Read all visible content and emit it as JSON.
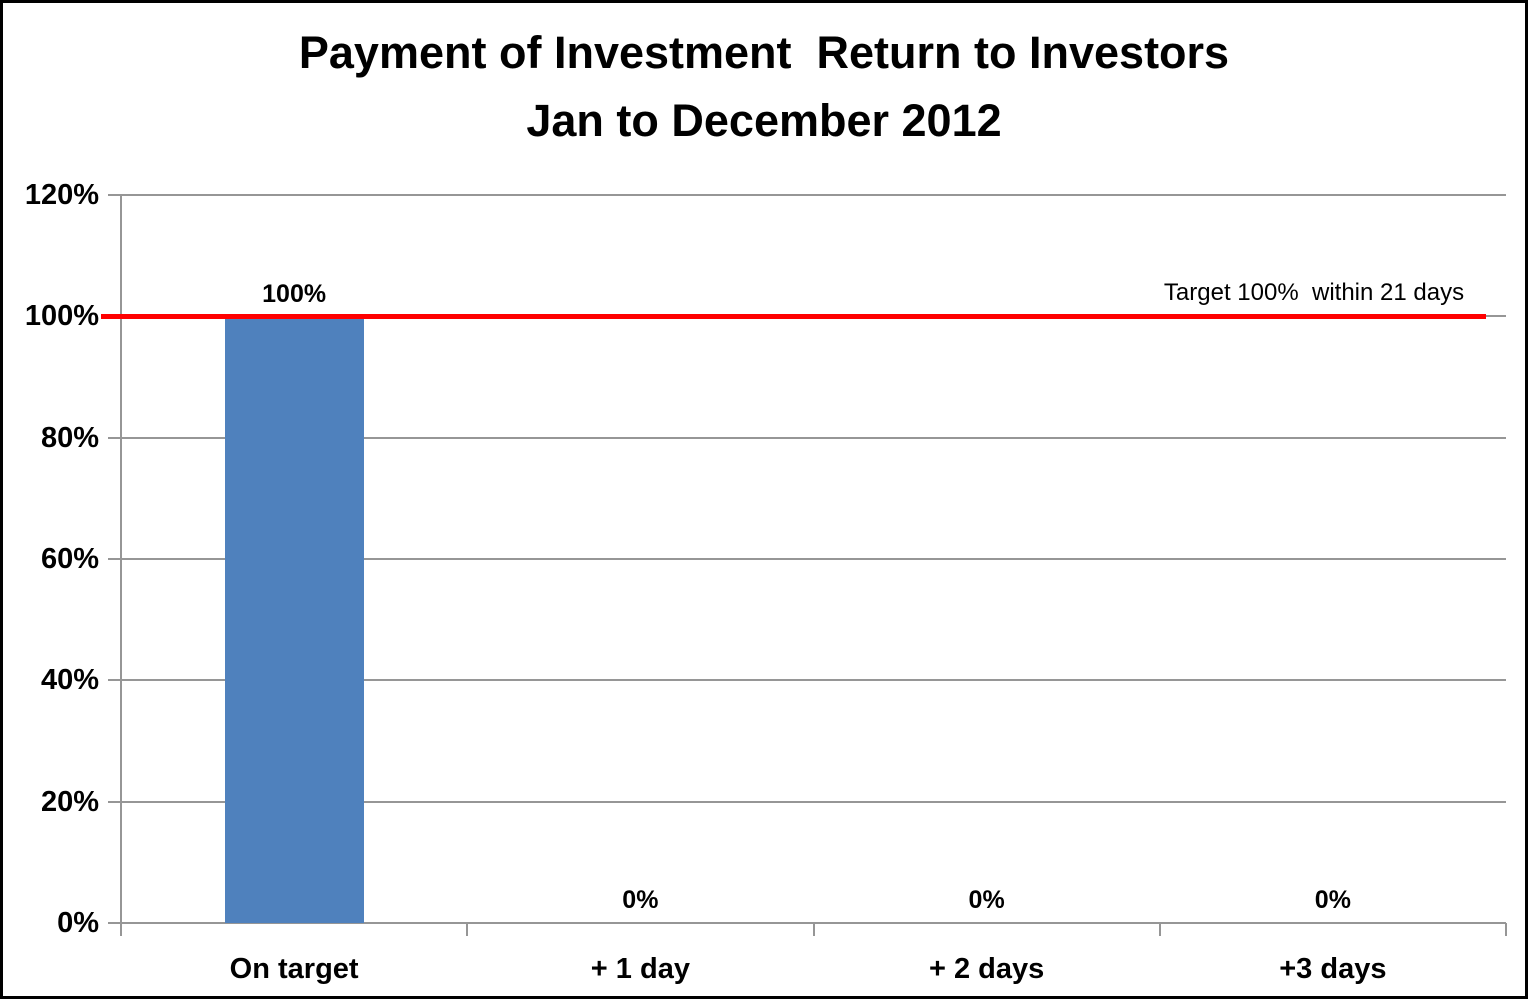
{
  "chart_data": {
    "type": "bar",
    "title": "Payment of Investment  Return to Investors",
    "subtitle": "Jan to December 2012",
    "categories": [
      "On target",
      "+ 1 day",
      "+ 2 days",
      "+3 days"
    ],
    "values": [
      100,
      0,
      0,
      0
    ],
    "data_labels": [
      "100%",
      "0%",
      "0%",
      "0%"
    ],
    "xlabel": "",
    "ylabel": "",
    "ylim": [
      0,
      120
    ],
    "ytick_step": 20,
    "ytick_labels": [
      "0%",
      "20%",
      "40%",
      "60%",
      "80%",
      "100%",
      "120%"
    ],
    "grid": true,
    "legend_position": "none",
    "bar_color": "#4F81BD",
    "grid_color": "#969696",
    "axis_color": "#969696",
    "text_color": "#000000",
    "background_color": "#FFFFFF",
    "frame_border_color": "#000000",
    "target_line": {
      "value": 100,
      "color": "#FF0000",
      "label": "Target 100%  within 21 days"
    }
  }
}
